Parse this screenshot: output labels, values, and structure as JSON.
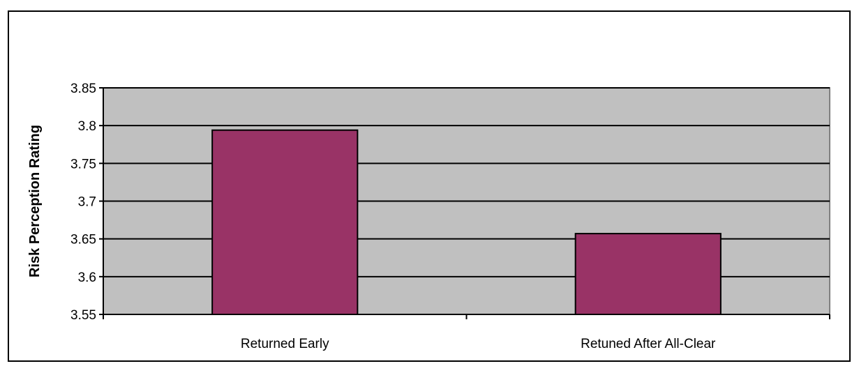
{
  "chart_data": {
    "type": "bar",
    "title": "",
    "xlabel": "",
    "ylabel": "Risk Perception Rating",
    "categories": [
      "Returned Early",
      "Retuned After All-Clear"
    ],
    "values": [
      3.794,
      3.657
    ],
    "ylim": [
      3.55,
      3.85
    ],
    "yticks": [
      3.55,
      3.6,
      3.65,
      3.7,
      3.75,
      3.8,
      3.85
    ],
    "ytick_labels": [
      "3.55",
      "3.6",
      "3.65",
      "3.7",
      "3.75",
      "3.8",
      "3.85"
    ],
    "grid": true,
    "legend": "none",
    "colors": {
      "bar": "#993366",
      "plot_background": "#c0c0c0",
      "gridline": "#000000"
    }
  }
}
